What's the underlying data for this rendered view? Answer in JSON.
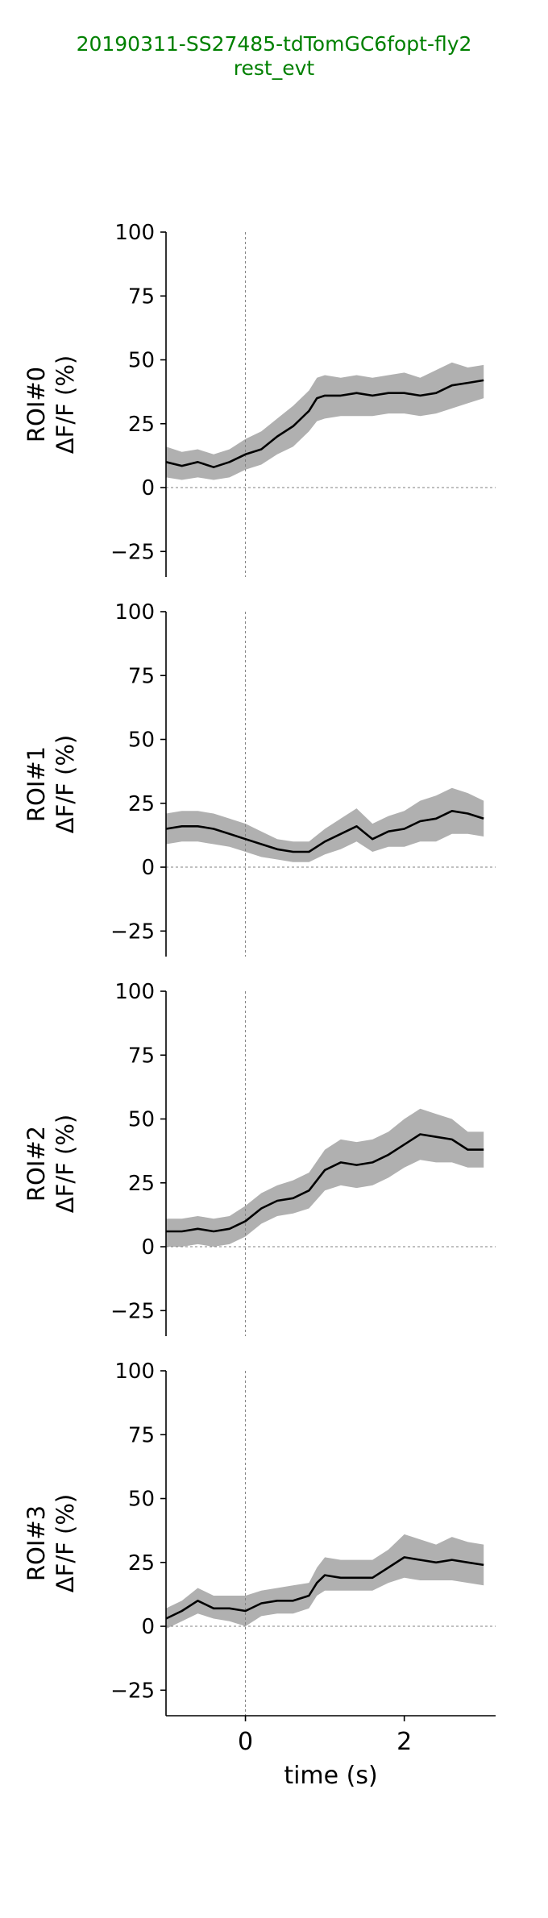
{
  "title": {
    "line1": "20190311-SS27485-tdTomGC6fopt-fly2",
    "line2": "rest_evt",
    "color": "#008000"
  },
  "colors": {
    "mean_line": "#000000",
    "band": "#b0b0b0",
    "ref_line": "#808080"
  },
  "chart_data": [
    {
      "type": "line",
      "ylabel": [
        "ROI#0",
        "ΔF/F (%)"
      ],
      "xlim": [
        -1.0,
        3.15
      ],
      "ylim": [
        -35,
        100
      ],
      "yticks": [
        -25,
        0,
        25,
        50,
        75,
        100
      ],
      "xticks": [],
      "reference_lines": {
        "x": 0,
        "y": 0
      },
      "series": [
        {
          "x": [
            -1.0,
            -0.8,
            -0.6,
            -0.4,
            -0.2,
            0.0,
            0.2,
            0.4,
            0.6,
            0.8,
            0.9,
            1.0,
            1.2,
            1.4,
            1.6,
            1.8,
            2.0,
            2.2,
            2.4,
            2.6,
            2.8,
            3.0
          ],
          "mean": [
            10,
            8.5,
            10,
            8,
            10,
            13,
            15,
            20,
            24,
            30,
            35,
            36,
            36,
            37,
            36,
            37,
            37,
            36,
            37,
            40,
            41,
            42
          ],
          "lower": [
            4,
            3,
            4,
            3,
            4,
            7,
            9,
            13,
            16,
            22,
            26,
            27,
            28,
            28,
            28,
            29,
            29,
            28,
            29,
            31,
            33,
            35
          ],
          "upper": [
            16,
            14,
            15,
            13,
            15,
            19,
            22,
            27,
            32,
            38,
            43,
            44,
            43,
            44,
            43,
            44,
            45,
            43,
            46,
            49,
            47,
            48
          ]
        }
      ]
    },
    {
      "type": "line",
      "ylabel": [
        "ROI#1",
        "ΔF/F (%)"
      ],
      "xlim": [
        -1.0,
        3.15
      ],
      "ylim": [
        -35,
        100
      ],
      "yticks": [
        -25,
        0,
        25,
        50,
        75,
        100
      ],
      "xticks": [],
      "reference_lines": {
        "x": 0,
        "y": 0
      },
      "series": [
        {
          "x": [
            -1.0,
            -0.8,
            -0.6,
            -0.4,
            -0.2,
            0.0,
            0.2,
            0.4,
            0.6,
            0.8,
            1.0,
            1.2,
            1.4,
            1.6,
            1.8,
            2.0,
            2.2,
            2.4,
            2.6,
            2.8,
            3.0
          ],
          "mean": [
            15,
            16,
            16,
            15,
            13,
            11,
            9,
            7,
            6,
            6,
            10,
            13,
            16,
            11,
            14,
            15,
            18,
            19,
            22,
            21,
            19
          ],
          "lower": [
            9,
            10,
            10,
            9,
            8,
            6,
            4,
            3,
            2,
            2,
            5,
            7,
            10,
            6,
            8,
            8,
            10,
            10,
            13,
            13,
            12
          ],
          "upper": [
            21,
            22,
            22,
            21,
            19,
            17,
            14,
            11,
            10,
            10,
            15,
            19,
            23,
            17,
            20,
            22,
            26,
            28,
            31,
            29,
            26
          ]
        }
      ]
    },
    {
      "type": "line",
      "ylabel": [
        "ROI#2",
        "ΔF/F (%)"
      ],
      "xlim": [
        -1.0,
        3.15
      ],
      "ylim": [
        -35,
        100
      ],
      "yticks": [
        -25,
        0,
        25,
        50,
        75,
        100
      ],
      "xticks": [],
      "reference_lines": {
        "x": 0,
        "y": 0
      },
      "series": [
        {
          "x": [
            -1.0,
            -0.8,
            -0.6,
            -0.4,
            -0.2,
            0.0,
            0.2,
            0.4,
            0.6,
            0.8,
            1.0,
            1.2,
            1.4,
            1.6,
            1.8,
            2.0,
            2.2,
            2.4,
            2.6,
            2.8,
            3.0
          ],
          "mean": [
            6,
            6,
            7,
            6,
            7,
            10,
            15,
            18,
            19,
            22,
            30,
            33,
            32,
            33,
            36,
            40,
            44,
            43,
            42,
            38,
            38
          ],
          "lower": [
            0,
            0,
            1,
            0,
            1,
            4,
            9,
            12,
            13,
            15,
            22,
            24,
            23,
            24,
            27,
            31,
            34,
            33,
            33,
            31,
            31
          ],
          "upper": [
            11,
            11,
            12,
            11,
            12,
            16,
            21,
            24,
            26,
            29,
            38,
            42,
            41,
            42,
            45,
            50,
            54,
            52,
            50,
            45,
            45
          ]
        }
      ]
    },
    {
      "type": "line",
      "ylabel": [
        "ROI#3",
        "ΔF/F (%)"
      ],
      "xlabel": "time (s)",
      "xlim": [
        -1.0,
        3.15
      ],
      "ylim": [
        -35,
        100
      ],
      "yticks": [
        -25,
        0,
        25,
        50,
        75,
        100
      ],
      "xticks": [
        0,
        2
      ],
      "reference_lines": {
        "x": 0,
        "y": 0
      },
      "series": [
        {
          "x": [
            -1.0,
            -0.8,
            -0.6,
            -0.4,
            -0.2,
            0.0,
            0.2,
            0.4,
            0.6,
            0.8,
            0.9,
            1.0,
            1.2,
            1.4,
            1.6,
            1.8,
            2.0,
            2.2,
            2.4,
            2.6,
            2.8,
            3.0
          ],
          "mean": [
            3,
            6,
            10,
            7,
            7,
            6,
            9,
            10,
            10,
            12,
            17,
            20,
            19,
            19,
            19,
            23,
            27,
            26,
            25,
            26,
            25,
            24
          ],
          "lower": [
            -1,
            2,
            5,
            3,
            2,
            0,
            4,
            5,
            5,
            7,
            12,
            14,
            14,
            14,
            14,
            17,
            19,
            18,
            18,
            18,
            17,
            16
          ],
          "upper": [
            7,
            10,
            15,
            12,
            12,
            12,
            14,
            15,
            16,
            17,
            23,
            27,
            26,
            26,
            26,
            30,
            36,
            34,
            32,
            35,
            33,
            32
          ]
        }
      ]
    }
  ]
}
